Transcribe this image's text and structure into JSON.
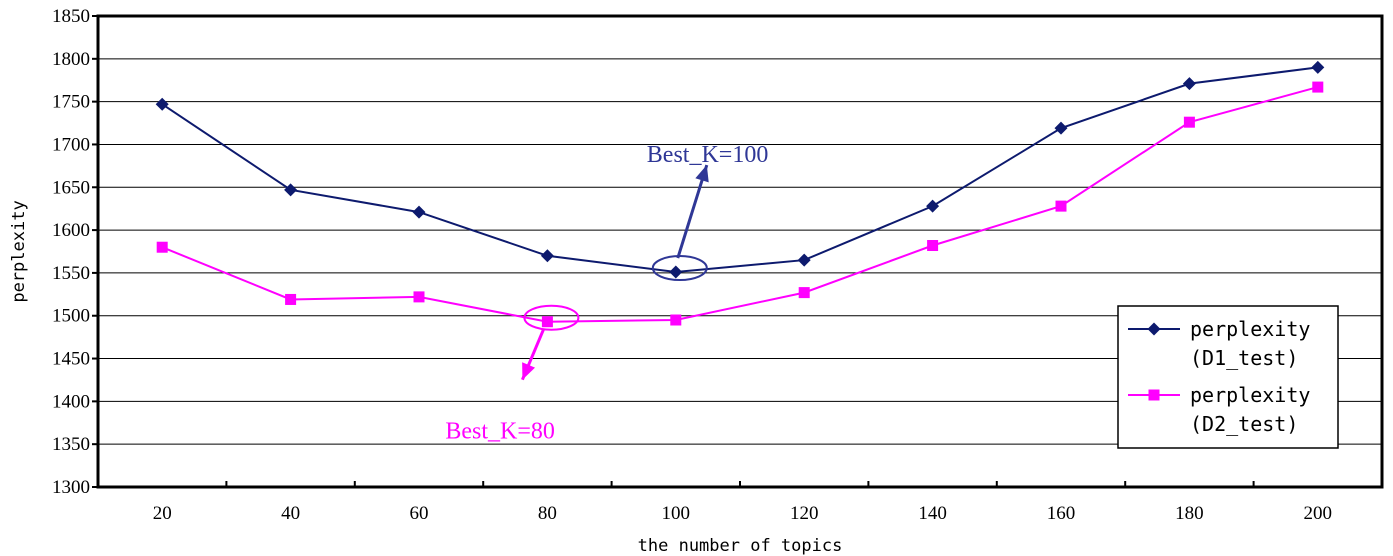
{
  "chart_data": {
    "type": "line",
    "title": "",
    "xlabel": "the number of topics",
    "ylabel": "perplexity",
    "x": [
      20,
      40,
      60,
      80,
      100,
      120,
      140,
      160,
      180,
      200
    ],
    "xtick_labels": [
      "20",
      "40",
      "60",
      "80",
      "100",
      "120",
      "140",
      "160",
      "180",
      "200"
    ],
    "ylim": [
      1300,
      1850
    ],
    "ytick_labels": [
      "1300",
      "1350",
      "1400",
      "1450",
      "1500",
      "1550",
      "1600",
      "1650",
      "1700",
      "1750",
      "1800",
      "1850"
    ],
    "grid": "horizontal",
    "legend_position": "bottom-right",
    "series": [
      {
        "name_line1": "perplexity",
        "name_line2": "(D1_test)",
        "color": "#0d1a6e",
        "marker": "diamond",
        "values": [
          1747,
          1647,
          1621,
          1570,
          1551,
          1565,
          1628,
          1719,
          1771,
          1790
        ]
      },
      {
        "name_line1": "perplexity",
        "name_line2": "(D2_test)",
        "color": "#ff00ff",
        "marker": "square",
        "values": [
          1580,
          1519,
          1522,
          1493,
          1495,
          1527,
          1582,
          1628,
          1726,
          1767
        ]
      }
    ],
    "annotations": [
      {
        "text": "Best_K=100",
        "series": 0,
        "x": 100,
        "color": "#2f3796"
      },
      {
        "text": "Best_K=80",
        "series": 1,
        "x": 80,
        "color": "#ff00ff"
      }
    ]
  }
}
